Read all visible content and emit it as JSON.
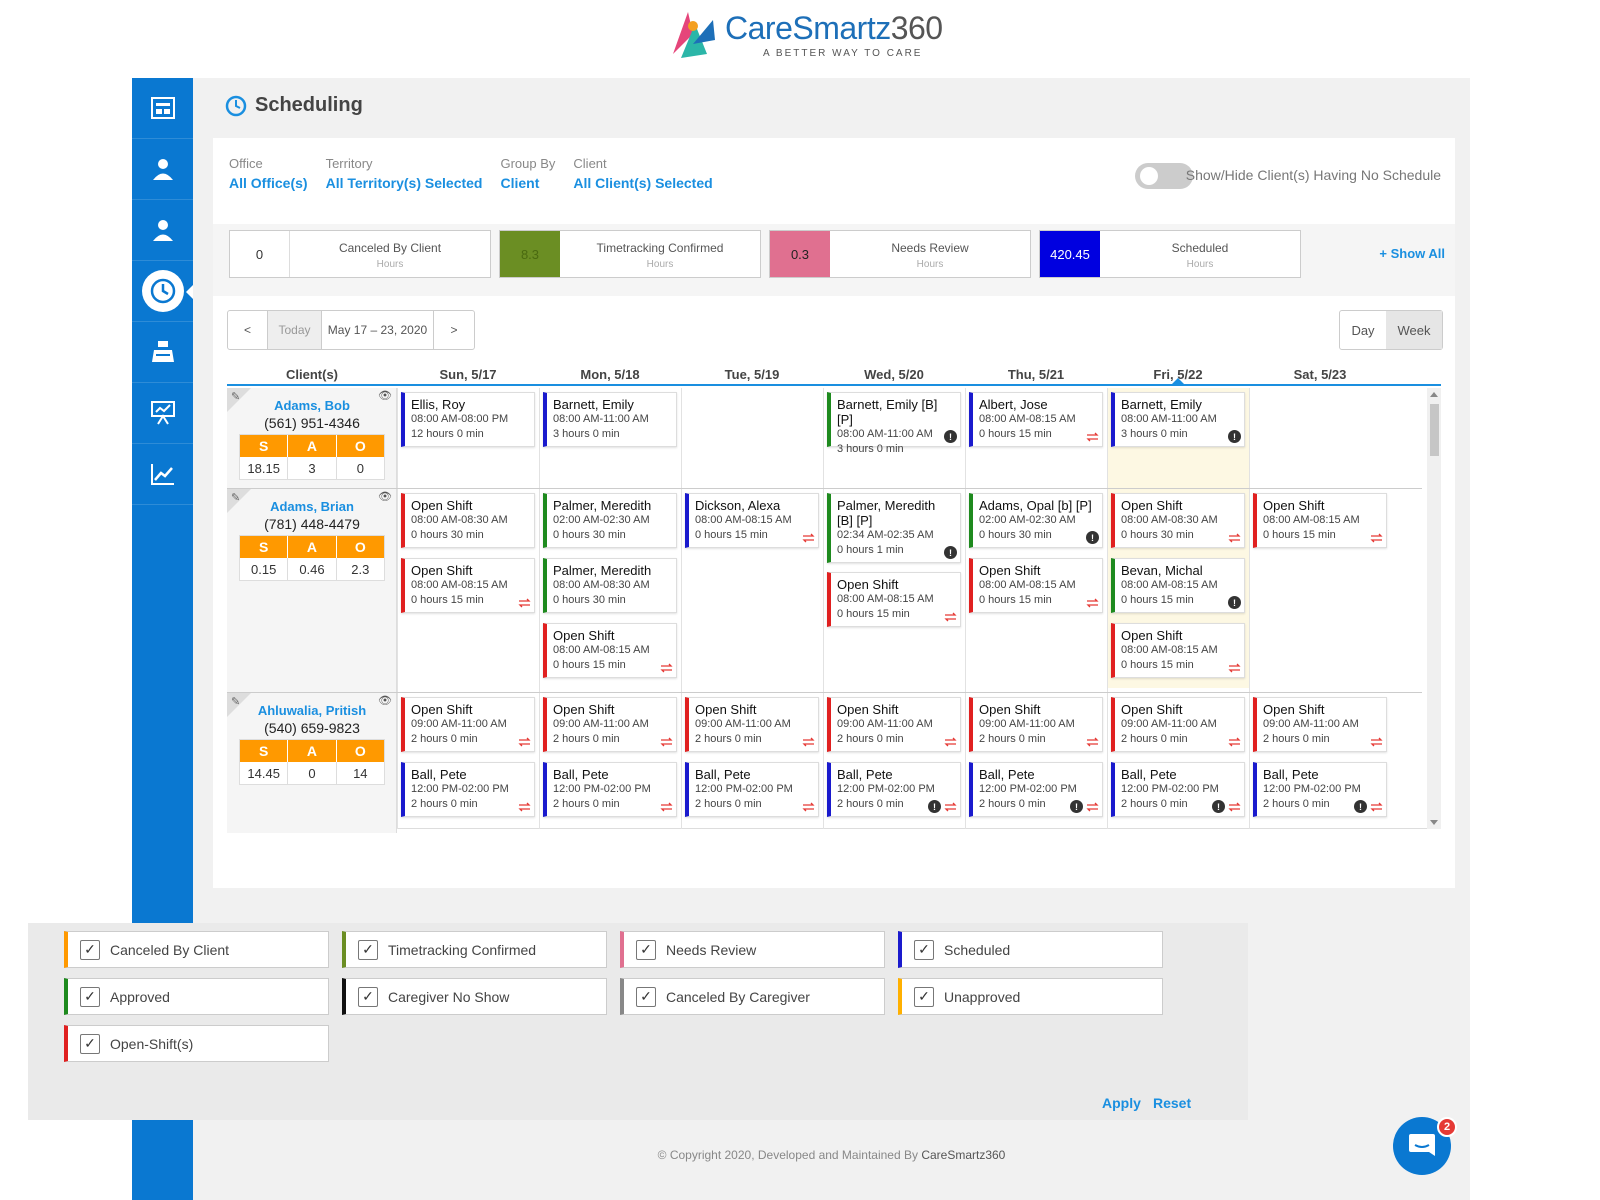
{
  "logo": {
    "brand": "CareSmartz",
    "brand_num": "360",
    "tagline": "A BETTER WAY TO CARE"
  },
  "sidebar": {
    "items": [
      {
        "icon": "dashboard-icon"
      },
      {
        "icon": "client-icon"
      },
      {
        "icon": "caregiver-icon"
      },
      {
        "icon": "scheduling-clock-icon",
        "active": true
      },
      {
        "icon": "billing-icon"
      },
      {
        "icon": "reports-icon"
      },
      {
        "icon": "analytics-icon"
      }
    ]
  },
  "page": {
    "title": "Scheduling"
  },
  "filters": [
    {
      "label": "Office",
      "value": "All Office(s)"
    },
    {
      "label": "Territory",
      "value": "All Territory(s) Selected"
    },
    {
      "label": "Group By",
      "value": "Client"
    },
    {
      "label": "Client",
      "value": "All Client(s) Selected"
    }
  ],
  "toggle": {
    "label": "Show/Hide Client(s) Having No Schedule"
  },
  "stats": [
    {
      "value": "0",
      "label": "Canceled By Client",
      "unit": "Hours",
      "color": "#ffffff",
      "text_color": "#333333"
    },
    {
      "value": "8.3",
      "label": "Timetracking Confirmed",
      "unit": "Hours",
      "color": "#6b8e23",
      "text_color": "#4a6a10"
    },
    {
      "value": "0.3",
      "label": "Needs Review",
      "unit": "Hours",
      "color": "#e07090",
      "text_color": "#222222"
    },
    {
      "value": "420.45",
      "label": "Scheduled",
      "unit": "Hours",
      "color": "#0000e0",
      "text_color": "#ffffff"
    }
  ],
  "show_all": "+ Show All",
  "nav": {
    "prev": "<",
    "today": "Today",
    "range": "May 17 – 23, 2020",
    "next": ">"
  },
  "view": {
    "day": "Day",
    "week": "Week"
  },
  "grid": {
    "client_header": "Client(s)",
    "days": [
      "Sun, 5/17",
      "Mon, 5/18",
      "Tue, 5/19",
      "Wed, 5/20",
      "Thu, 5/21",
      "Fri, 5/22",
      "Sat, 5/23"
    ],
    "clients": [
      {
        "name": "Adams, Bob",
        "phone": "(561) 951-4346",
        "s": "18.15",
        "a": "3",
        "o": "0"
      },
      {
        "name": "Adams, Brian",
        "phone": "(781) 448-4479",
        "s": "0.15",
        "a": "0.46",
        "o": "2.3"
      },
      {
        "name": "Ahluwalia, Pritish",
        "phone": "(540) 659-9823",
        "s": "14.45",
        "a": "0",
        "o": "14"
      }
    ],
    "sao_labels": [
      "S",
      "A",
      "O"
    ],
    "shifts": [
      {
        "client": 0,
        "day": 0,
        "slot": 0,
        "name": "Ellis, Roy",
        "time": "08:00 AM-08:00 PM",
        "hours": "12 hours 0 min",
        "color": "#1a1acd"
      },
      {
        "client": 0,
        "day": 1,
        "slot": 0,
        "name": "Barnett, Emily",
        "time": "08:00 AM-11:00 AM",
        "hours": "3 hours 0 min",
        "color": "#1a1acd"
      },
      {
        "client": 0,
        "day": 3,
        "slot": 0,
        "name": "Barnett, Emily [B] [P]",
        "time": "08:00 AM-11:00 AM",
        "hours": "3 hours 0 min",
        "color": "#1e8a1e",
        "info": true
      },
      {
        "client": 0,
        "day": 4,
        "slot": 0,
        "name": "Albert, Jose",
        "time": "08:00 AM-08:15 AM",
        "hours": "0 hours 15 min",
        "color": "#1a1acd",
        "repeat": true
      },
      {
        "client": 0,
        "day": 5,
        "slot": 0,
        "name": "Barnett, Emily",
        "time": "08:00 AM-11:00 AM",
        "hours": "3 hours 0 min",
        "color": "#1a1acd",
        "info": true
      },
      {
        "client": 1,
        "day": 0,
        "slot": 0,
        "name": "Open Shift",
        "time": "08:00 AM-08:30 AM",
        "hours": "0 hours 30 min",
        "color": "#e02020"
      },
      {
        "client": 1,
        "day": 0,
        "slot": 1,
        "name": "Open Shift",
        "time": "08:00 AM-08:15 AM",
        "hours": "0 hours 15 min",
        "color": "#e02020",
        "repeat": true
      },
      {
        "client": 1,
        "day": 1,
        "slot": 0,
        "name": "Palmer, Meredith",
        "time": "02:00 AM-02:30 AM",
        "hours": "0 hours 30 min",
        "color": "#1e8a1e"
      },
      {
        "client": 1,
        "day": 1,
        "slot": 1,
        "name": "Palmer, Meredith",
        "time": "08:00 AM-08:30 AM",
        "hours": "0 hours 30 min",
        "color": "#1e8a1e"
      },
      {
        "client": 1,
        "day": 1,
        "slot": 2,
        "name": "Open Shift",
        "time": "08:00 AM-08:15 AM",
        "hours": "0 hours 15 min",
        "color": "#e02020",
        "repeat": true
      },
      {
        "client": 1,
        "day": 2,
        "slot": 0,
        "name": "Dickson, Alexa",
        "time": "08:00 AM-08:15 AM",
        "hours": "0 hours 15 min",
        "color": "#1a1acd",
        "repeat": true
      },
      {
        "client": 1,
        "day": 3,
        "slot": 0,
        "name": "Palmer, Meredith [B] [P]",
        "time": "02:34 AM-02:35 AM",
        "hours": "0 hours 1 min",
        "color": "#1e8a1e",
        "info": true,
        "tall": true
      },
      {
        "client": 1,
        "day": 3,
        "slot": 1,
        "name": "Open Shift",
        "time": "08:00 AM-08:15 AM",
        "hours": "0 hours 15 min",
        "color": "#e02020",
        "repeat": true,
        "offset": 14
      },
      {
        "client": 1,
        "day": 4,
        "slot": 0,
        "name": "Adams, Opal [b] [P]",
        "time": "02:00 AM-02:30 AM",
        "hours": "0 hours 30 min",
        "color": "#1e8a1e",
        "info": true
      },
      {
        "client": 1,
        "day": 4,
        "slot": 1,
        "name": "Open Shift",
        "time": "08:00 AM-08:15 AM",
        "hours": "0 hours 15 min",
        "color": "#e02020",
        "repeat": true
      },
      {
        "client": 1,
        "day": 5,
        "slot": 0,
        "name": "Open Shift",
        "time": "08:00 AM-08:30 AM",
        "hours": "0 hours 30 min",
        "color": "#e02020",
        "repeat": true
      },
      {
        "client": 1,
        "day": 5,
        "slot": 1,
        "name": "Bevan, Michal",
        "time": "08:00 AM-08:15 AM",
        "hours": "0 hours 15 min",
        "color": "#1e8a1e",
        "info": true
      },
      {
        "client": 1,
        "day": 5,
        "slot": 2,
        "name": "Open Shift",
        "time": "08:00 AM-08:15 AM",
        "hours": "0 hours 15 min",
        "color": "#e02020",
        "repeat": true
      },
      {
        "client": 1,
        "day": 6,
        "slot": 0,
        "name": "Open Shift",
        "time": "08:00 AM-08:15 AM",
        "hours": "0 hours 15 min",
        "color": "#e02020",
        "repeat": true
      },
      {
        "client": 2,
        "day": 0,
        "slot": 0,
        "name": "Open Shift",
        "time": "09:00 AM-11:00 AM",
        "hours": "2 hours 0 min",
        "color": "#e02020",
        "repeat": true
      },
      {
        "client": 2,
        "day": 1,
        "slot": 0,
        "name": "Open Shift",
        "time": "09:00 AM-11:00 AM",
        "hours": "2 hours 0 min",
        "color": "#e02020",
        "repeat": true
      },
      {
        "client": 2,
        "day": 2,
        "slot": 0,
        "name": "Open Shift",
        "time": "09:00 AM-11:00 AM",
        "hours": "2 hours 0 min",
        "color": "#e02020",
        "repeat": true
      },
      {
        "client": 2,
        "day": 3,
        "slot": 0,
        "name": "Open Shift",
        "time": "09:00 AM-11:00 AM",
        "hours": "2 hours 0 min",
        "color": "#e02020",
        "repeat": true
      },
      {
        "client": 2,
        "day": 4,
        "slot": 0,
        "name": "Open Shift",
        "time": "09:00 AM-11:00 AM",
        "hours": "2 hours 0 min",
        "color": "#e02020",
        "repeat": true
      },
      {
        "client": 2,
        "day": 5,
        "slot": 0,
        "name": "Open Shift",
        "time": "09:00 AM-11:00 AM",
        "hours": "2 hours 0 min",
        "color": "#e02020",
        "repeat": true
      },
      {
        "client": 2,
        "day": 6,
        "slot": 0,
        "name": "Open Shift",
        "time": "09:00 AM-11:00 AM",
        "hours": "2 hours 0 min",
        "color": "#e02020",
        "repeat": true
      },
      {
        "client": 2,
        "day": 0,
        "slot": 1,
        "name": "Ball, Pete",
        "time": "12:00 PM-02:00 PM",
        "hours": "2 hours 0 min",
        "color": "#1a1acd",
        "repeat": true
      },
      {
        "client": 2,
        "day": 1,
        "slot": 1,
        "name": "Ball, Pete",
        "time": "12:00 PM-02:00 PM",
        "hours": "2 hours 0 min",
        "color": "#1a1acd",
        "repeat": true
      },
      {
        "client": 2,
        "day": 2,
        "slot": 1,
        "name": "Ball, Pete",
        "time": "12:00 PM-02:00 PM",
        "hours": "2 hours 0 min",
        "color": "#1a1acd",
        "repeat": true
      },
      {
        "client": 2,
        "day": 3,
        "slot": 1,
        "name": "Ball, Pete",
        "time": "12:00 PM-02:00 PM",
        "hours": "2 hours 0 min",
        "color": "#1a1acd",
        "repeat": true,
        "info": true
      },
      {
        "client": 2,
        "day": 4,
        "slot": 1,
        "name": "Ball, Pete",
        "time": "12:00 PM-02:00 PM",
        "hours": "2 hours 0 min",
        "color": "#1a1acd",
        "repeat": true,
        "info": true
      },
      {
        "client": 2,
        "day": 5,
        "slot": 1,
        "name": "Ball, Pete",
        "time": "12:00 PM-02:00 PM",
        "hours": "2 hours 0 min",
        "color": "#1a1acd",
        "repeat": true,
        "info": true
      },
      {
        "client": 2,
        "day": 6,
        "slot": 1,
        "name": "Ball, Pete",
        "time": "12:00 PM-02:00 PM",
        "hours": "2 hours 0 min",
        "color": "#1a1acd",
        "repeat": true,
        "info": true
      }
    ]
  },
  "legend": [
    {
      "label": "Canceled By Client",
      "color": "#ff9900"
    },
    {
      "label": "Timetracking Confirmed",
      "color": "#6b8e23"
    },
    {
      "label": "Needs Review",
      "color": "#e07090"
    },
    {
      "label": "Scheduled",
      "color": "#1a1acd"
    },
    {
      "label": "Approved",
      "color": "#1e8a1e"
    },
    {
      "label": "Caregiver No Show",
      "color": "#111111"
    },
    {
      "label": "Canceled By Caregiver",
      "color": "#888888"
    },
    {
      "label": "Unapproved",
      "color": "#ffb000"
    },
    {
      "label": "Open-Shift(s)",
      "color": "#e02020"
    }
  ],
  "legend_actions": {
    "apply": "Apply",
    "reset": "Reset"
  },
  "footer": {
    "text": "© Copyright 2020, Developed and Maintained By ",
    "brand": "CareSmartz360"
  },
  "chat": {
    "badge": "2"
  }
}
